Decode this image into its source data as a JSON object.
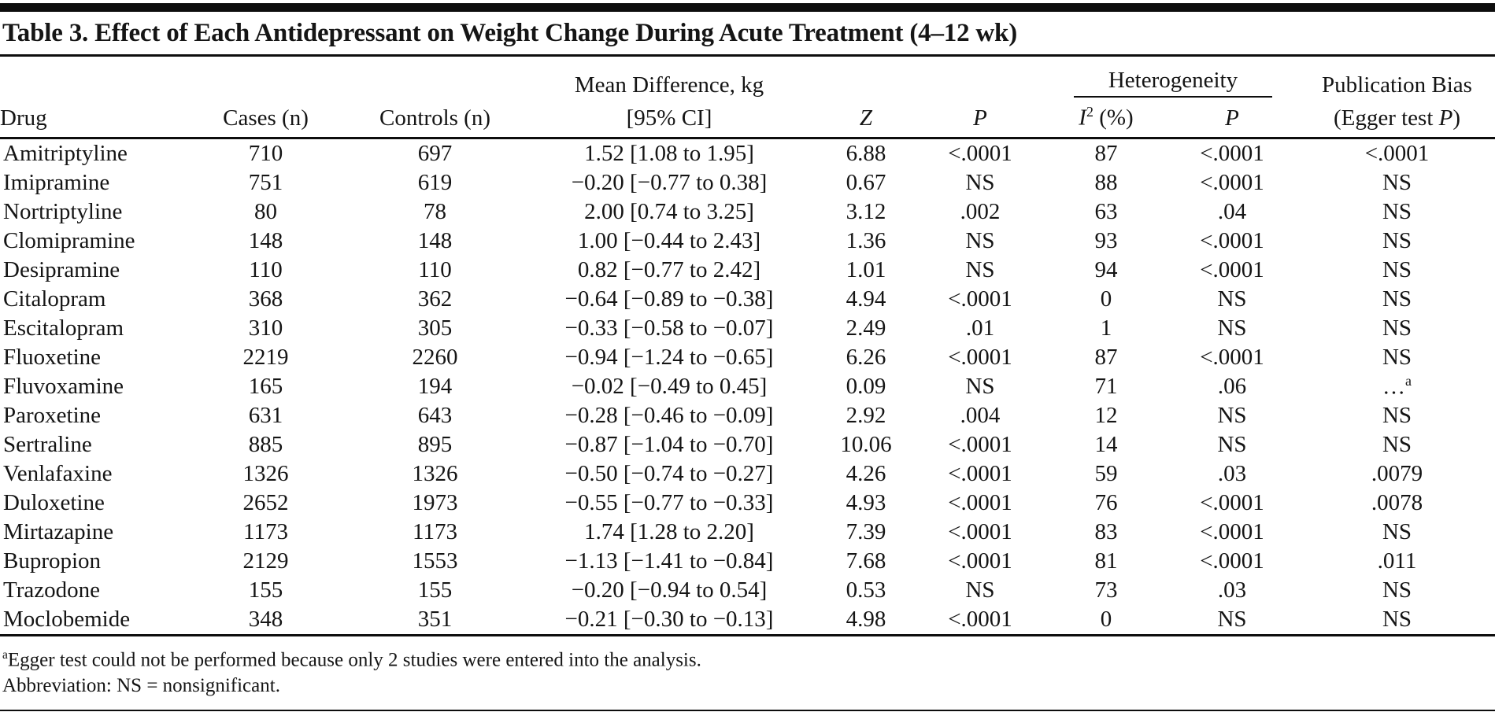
{
  "title": "Table 3. Effect of Each Antidepressant on Weight Change During Acute Treatment (4–12 wk)",
  "header": {
    "drug": "Drug",
    "cases": "Cases (n)",
    "controls": "Controls (n)",
    "mean_diff_line1": "Mean Difference, kg",
    "mean_diff_line2": "[95% CI]",
    "z": "Z",
    "p": "P",
    "heterogeneity": "Heterogeneity",
    "i2_base": "I",
    "i2_sup": "2",
    "i2_rest": " (%)",
    "het_p": "P",
    "pub_bias_line1": "Publication Bias",
    "pub_bias_line2_pre": "(Egger test ",
    "pub_bias_line2_italic": "P",
    "pub_bias_line2_post": ")"
  },
  "rows": [
    {
      "drug": "Amitriptyline",
      "cases": "710",
      "controls": "697",
      "mean_diff": "1.52 [1.08 to 1.95]",
      "z": "6.88",
      "p": "<.0001",
      "i2": "87",
      "het_p": "<.0001",
      "egger": "<.0001"
    },
    {
      "drug": "Imipramine",
      "cases": "751",
      "controls": "619",
      "mean_diff": "−0.20 [−0.77 to 0.38]",
      "z": "0.67",
      "p": "NS",
      "i2": "88",
      "het_p": "<.0001",
      "egger": "NS"
    },
    {
      "drug": "Nortriptyline",
      "cases": "80",
      "controls": "78",
      "mean_diff": "2.00 [0.74 to 3.25]",
      "z": "3.12",
      "p": ".002",
      "i2": "63",
      "het_p": ".04",
      "egger": "NS"
    },
    {
      "drug": "Clomipramine",
      "cases": "148",
      "controls": "148",
      "mean_diff": "1.00 [−0.44 to 2.43]",
      "z": "1.36",
      "p": "NS",
      "i2": "93",
      "het_p": "<.0001",
      "egger": "NS"
    },
    {
      "drug": "Desipramine",
      "cases": "110",
      "controls": "110",
      "mean_diff": "0.82 [−0.77 to 2.42]",
      "z": "1.01",
      "p": "NS",
      "i2": "94",
      "het_p": "<.0001",
      "egger": "NS"
    },
    {
      "drug": "Citalopram",
      "cases": "368",
      "controls": "362",
      "mean_diff": "−0.64 [−0.89 to −0.38]",
      "z": "4.94",
      "p": "<.0001",
      "i2": "0",
      "het_p": "NS",
      "egger": "NS"
    },
    {
      "drug": "Escitalopram",
      "cases": "310",
      "controls": "305",
      "mean_diff": "−0.33 [−0.58 to −0.07]",
      "z": "2.49",
      "p": ".01",
      "i2": "1",
      "het_p": "NS",
      "egger": "NS"
    },
    {
      "drug": "Fluoxetine",
      "cases": "2219",
      "controls": "2260",
      "mean_diff": "−0.94 [−1.24 to −0.65]",
      "z": "6.26",
      "p": "<.0001",
      "i2": "87",
      "het_p": "<.0001",
      "egger": "NS"
    },
    {
      "drug": "Fluvoxamine",
      "cases": "165",
      "controls": "194",
      "mean_diff": "−0.02 [−0.49 to 0.45]",
      "z": "0.09",
      "p": "NS",
      "i2": "71",
      "het_p": ".06",
      "egger": "…",
      "egger_sup": "a"
    },
    {
      "drug": "Paroxetine",
      "cases": "631",
      "controls": "643",
      "mean_diff": "−0.28 [−0.46 to −0.09]",
      "z": "2.92",
      "p": ".004",
      "i2": "12",
      "het_p": "NS",
      "egger": "NS"
    },
    {
      "drug": "Sertraline",
      "cases": "885",
      "controls": "895",
      "mean_diff": "−0.87 [−1.04 to −0.70]",
      "z": "10.06",
      "p": "<.0001",
      "i2": "14",
      "het_p": "NS",
      "egger": "NS"
    },
    {
      "drug": "Venlafaxine",
      "cases": "1326",
      "controls": "1326",
      "mean_diff": "−0.50 [−0.74 to −0.27]",
      "z": "4.26",
      "p": "<.0001",
      "i2": "59",
      "het_p": ".03",
      "egger": ".0079"
    },
    {
      "drug": "Duloxetine",
      "cases": "2652",
      "controls": "1973",
      "mean_diff": "−0.55 [−0.77 to −0.33]",
      "z": "4.93",
      "p": "<.0001",
      "i2": "76",
      "het_p": "<.0001",
      "egger": ".0078"
    },
    {
      "drug": "Mirtazapine",
      "cases": "1173",
      "controls": "1173",
      "mean_diff": "1.74 [1.28 to 2.20]",
      "z": "7.39",
      "p": "<.0001",
      "i2": "83",
      "het_p": "<.0001",
      "egger": "NS"
    },
    {
      "drug": "Bupropion",
      "cases": "2129",
      "controls": "1553",
      "mean_diff": "−1.13 [−1.41 to −0.84]",
      "z": "7.68",
      "p": "<.0001",
      "i2": "81",
      "het_p": "<.0001",
      "egger": ".011"
    },
    {
      "drug": "Trazodone",
      "cases": "155",
      "controls": "155",
      "mean_diff": "−0.20 [−0.94 to 0.54]",
      "z": "0.53",
      "p": "NS",
      "i2": "73",
      "het_p": ".03",
      "egger": "NS"
    },
    {
      "drug": "Moclobemide",
      "cases": "348",
      "controls": "351",
      "mean_diff": "−0.21 [−0.30 to −0.13]",
      "z": "4.98",
      "p": "<.0001",
      "i2": "0",
      "het_p": "NS",
      "egger": "NS"
    }
  ],
  "footnotes": {
    "note_a_marker": "a",
    "note_a_text": "Egger test could not be performed because only 2 studies were entered into the analysis.",
    "abbreviation": "Abbreviation: NS = nonsignificant."
  }
}
